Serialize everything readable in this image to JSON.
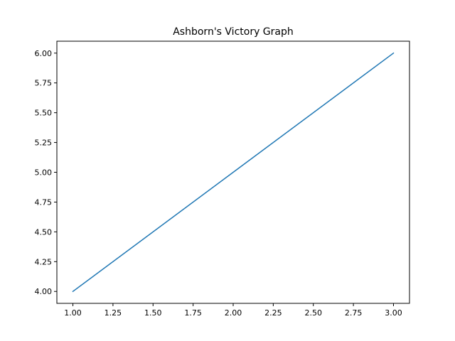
{
  "chart_data": {
    "type": "line",
    "title": "Ashborn's Victory Graph",
    "xlabel": "",
    "ylabel": "",
    "xlim": [
      0.9,
      3.1
    ],
    "ylim": [
      3.9,
      6.1
    ],
    "x_ticks": [
      1.0,
      1.25,
      1.5,
      1.75,
      2.0,
      2.25,
      2.5,
      2.75,
      3.0
    ],
    "x_tick_labels": [
      "1.00",
      "1.25",
      "1.50",
      "1.75",
      "2.00",
      "2.25",
      "2.50",
      "2.75",
      "3.00"
    ],
    "y_ticks": [
      4.0,
      4.25,
      4.5,
      4.75,
      5.0,
      5.25,
      5.5,
      5.75,
      6.0
    ],
    "y_tick_labels": [
      "4.00",
      "4.25",
      "4.50",
      "4.75",
      "5.00",
      "5.25",
      "5.50",
      "5.75",
      "6.00"
    ],
    "grid": false,
    "series": [
      {
        "x": [
          1,
          2,
          3
        ],
        "y": [
          4,
          5,
          6
        ],
        "color": "#1f77b4"
      }
    ]
  }
}
